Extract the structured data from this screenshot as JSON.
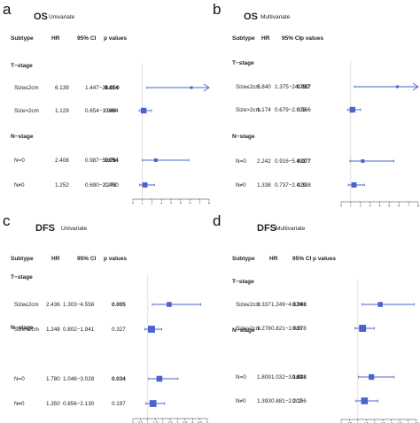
{
  "chart_data": [
    {
      "type": "forest",
      "panel_letter": "a",
      "title": "OS",
      "subtitle": "Univariate",
      "headers": [
        "Subtype",
        "HR",
        "95% CI",
        "p values"
      ],
      "groups": [
        {
          "label": "T−stage",
          "rows": [
            {
              "label": "Size≤2cm",
              "hr_text": "6.139",
              "ci_text": "1.447−26.050",
              "p_text": "0.014",
              "bold": true,
              "hr": 6.139,
              "lo": 1.447,
              "hi": 26.05,
              "arrow": true
            },
            {
              "label": "Size>2cm",
              "hr_text": "1.129",
              "ci_text": "0.654−1.949",
              "p_text": "0.664",
              "bold": false,
              "hr": 1.129,
              "lo": 0.654,
              "hi": 1.949
            }
          ]
        },
        {
          "label": "N−stage",
          "rows": [
            {
              "label": "N=0",
              "hr_text": "2.408",
              "ci_text": "0.987−5.876",
              "p_text": "0.054",
              "bold": true,
              "hr": 2.408,
              "lo": 0.987,
              "hi": 5.876
            },
            {
              "label": "N≠0",
              "hr_text": "1.252",
              "ci_text": "0.690−2.272",
              "p_text": "0.460",
              "bold": false,
              "hr": 1.252,
              "lo": 0.69,
              "hi": 2.272
            }
          ]
        }
      ],
      "xlim": [
        0,
        8
      ],
      "ticks": [
        0,
        1,
        2,
        3,
        4,
        5,
        6,
        7,
        8
      ],
      "marker_color": "#4a63cf"
    },
    {
      "type": "forest",
      "panel_letter": "b",
      "title": "OS",
      "subtitle": "Multivariate",
      "headers": [
        "Subtype",
        "HR",
        "95% CI",
        "p values"
      ],
      "groups": [
        {
          "label": "T−stage",
          "rows": [
            {
              "label": "Size≤2cm",
              "hr_text": "5.840",
              "ci_text": "1.375−24.797",
              "p_text": "0.017",
              "bold": true,
              "hr": 5.84,
              "lo": 1.375,
              "hi": 24.797,
              "arrow": true
            },
            {
              "label": "Size>2cm",
              "hr_text": "1.174",
              "ci_text": "0.679−2.028",
              "p_text": "0.566",
              "bold": false,
              "hr": 1.174,
              "lo": 0.679,
              "hi": 2.028
            }
          ]
        },
        {
          "label": "N−stage",
          "rows": [
            {
              "label": "N=0",
              "hr_text": "2.242",
              "ci_text": "0.916−5.491",
              "p_text": "0.077",
              "bold": true,
              "hr": 2.242,
              "lo": 0.916,
              "hi": 5.491
            },
            {
              "label": "N≠0",
              "hr_text": "1.338",
              "ci_text": "0.737−2.429",
              "p_text": "0.338",
              "bold": false,
              "hr": 1.338,
              "lo": 0.737,
              "hi": 2.429
            }
          ]
        }
      ],
      "xlim": [
        0,
        8
      ],
      "ticks": [
        0,
        1,
        2,
        3,
        4,
        5,
        6,
        7,
        8
      ],
      "marker_color": "#4a63cf"
    },
    {
      "type": "forest",
      "panel_letter": "c",
      "title": "DFS",
      "subtitle": "Univariate",
      "headers": [
        "Subtype",
        "HR",
        "95% CI",
        "p values"
      ],
      "groups": [
        {
          "label": "T−stage",
          "rows": [
            {
              "label": "Size≤2cm",
              "hr_text": "2.436",
              "ci_text": "1.303−4.556",
              "p_text": "0.005",
              "bold": true,
              "hr": 2.436,
              "lo": 1.303,
              "hi": 4.556
            },
            {
              "label": "Size>2cm",
              "hr_text": "1.248",
              "ci_text": "0.802−1.941",
              "p_text": "0.327",
              "bold": false,
              "hr": 1.248,
              "lo": 0.802,
              "hi": 1.941
            }
          ]
        },
        {
          "label": "N−stage",
          "rows": [
            {
              "label": "N=0",
              "hr_text": "1.780",
              "ci_text": "1.046−3.028",
              "p_text": "0.034",
              "bold": true,
              "hr": 1.78,
              "lo": 1.046,
              "hi": 3.028
            },
            {
              "label": "N≠0",
              "hr_text": "1.350",
              "ci_text": "0.856−2.130",
              "p_text": "0.197",
              "bold": false,
              "hr": 1.35,
              "lo": 0.856,
              "hi": 2.13
            }
          ]
        }
      ],
      "xlim": [
        0,
        5
      ],
      "ticks": [
        0,
        0.5,
        1,
        1.5,
        2,
        2.5,
        3,
        3.5,
        4,
        4.5,
        5
      ],
      "tick_labels": [
        "0",
        "0.5",
        "1",
        "1.5",
        "2",
        "2.5",
        "3",
        "3.5",
        "4",
        "4.5",
        "5"
      ],
      "marker_color": "#4a63cf"
    },
    {
      "type": "forest",
      "panel_letter": "d",
      "title": "DFS",
      "subtitle": "Multivariate",
      "headers": [
        "Subtype",
        "HR",
        "95% CI",
        "p values"
      ],
      "groups": [
        {
          "label": "T−stage",
          "rows": [
            {
              "label": "Size≤2cm",
              "hr_text": "2.337",
              "ci_text": "1.249−4.374",
              "p_text": "0.008",
              "bold": true,
              "hr": 2.337,
              "lo": 1.249,
              "hi": 4.374
            },
            {
              "label": "Size>2cm",
              "hr_text": "1.278",
              "ci_text": "0.821−1.989",
              "p_text": "0.278",
              "bold": false,
              "hr": 1.278,
              "lo": 0.821,
              "hi": 1.989
            }
          ]
        },
        {
          "label": "N−stage",
          "rows": [
            {
              "label": "N=0",
              "hr_text": "1.809",
              "ci_text": "1.032−3.169",
              "p_text": "0.038",
              "bold": true,
              "hr": 1.809,
              "lo": 1.032,
              "hi": 3.169
            },
            {
              "label": "N≠0",
              "hr_text": "1.393",
              "ci_text": "0.881−2.202",
              "p_text": "0.156",
              "bold": false,
              "hr": 1.393,
              "lo": 0.881,
              "hi": 2.202
            }
          ]
        }
      ],
      "xlim": [
        0,
        4.5
      ],
      "ticks": [
        0,
        0.5,
        1,
        1.5,
        2,
        2.5,
        3,
        3.5,
        4,
        4.5
      ],
      "tick_labels": [
        "0",
        "0.5",
        "1",
        "1.5",
        "2",
        "2.5",
        "3",
        "3.5",
        "4",
        "4.5"
      ],
      "marker_color": "#4a63cf"
    }
  ]
}
